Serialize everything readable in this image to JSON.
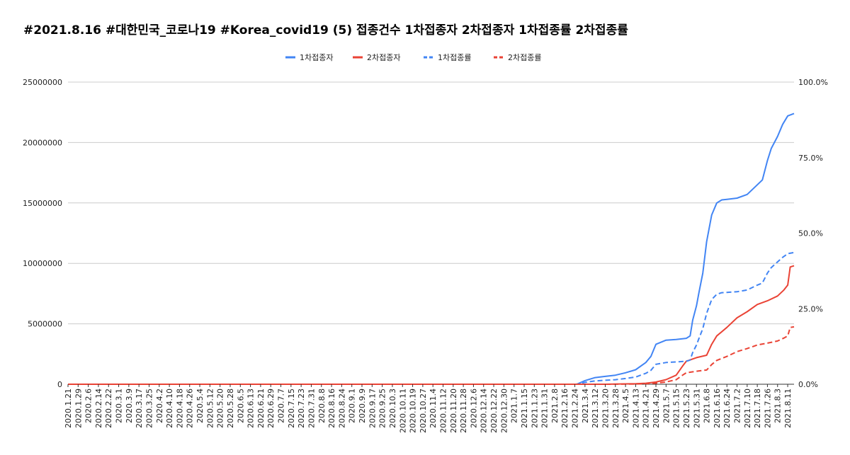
{
  "chart_data": {
    "type": "line",
    "title": "#2021.8.16 #대한민국_코로나19 #Korea_covid19 (5) 접종건수 1차접종자 2차접종자 1차접종률 2차접종률",
    "xlabel": "",
    "ylabel": "",
    "ylim": [
      0,
      25000000
    ],
    "y2lim": [
      0,
      100
    ],
    "grid": true,
    "legend_position": "top",
    "y_ticks": [
      "0",
      "5000000",
      "10000000",
      "15000000",
      "20000000",
      "25000000"
    ],
    "y2_ticks": [
      "0.0%",
      "25.0%",
      "50.0%",
      "75.0%",
      "100.0%"
    ],
    "x_ticks": [
      "2020.1.21",
      "2020.1.29",
      "2020.2.6",
      "2020.2.14",
      "2020.2.22",
      "2020.3.1",
      "2020.3.9",
      "2020.3.17",
      "2020.3.25",
      "2020.4.2",
      "2020.4.10",
      "2020.4.18",
      "2020.4.26",
      "2020.5.4",
      "2020.5.12",
      "2020.5.20",
      "2020.5.28",
      "2020.6.5",
      "2020.6.13",
      "2020.6.21",
      "2020.6.29",
      "2020.7.7",
      "2020.7.15",
      "2020.7.23",
      "2020.7.31",
      "2020.8.8",
      "2020.8.16",
      "2020.8.24",
      "2020.9.1",
      "2020.9.9",
      "2020.9.17",
      "2020.9.25",
      "2020.10.3",
      "2020.10.11",
      "2020.10.19",
      "2020.10.27",
      "2020.11.4",
      "2020.11.12",
      "2020.11.20",
      "2020.11.28",
      "2020.12.6",
      "2020.12.14",
      "2020.12.22",
      "2020.12.30",
      "2021.1.7",
      "2021.1.15",
      "2021.1.23",
      "2021.1.31",
      "2021.2.8",
      "2021.2.16",
      "2021.2.24",
      "2021.3.4",
      "2021.3.12",
      "2021.3.20",
      "2021.3.28",
      "2021.4.5",
      "2021.4.13",
      "2021.4.21",
      "2021.4.29",
      "2021.5.7",
      "2021.5.15",
      "2021.5.23",
      "2021.5.31",
      "2021.6.8",
      "2021.6.16",
      "2021.6.24",
      "2021.7.2",
      "2021.7.10",
      "2021.7.18",
      "2021.7.26",
      "2021.8.3",
      "2021.8.11"
    ],
    "series": [
      {
        "name": "1차접종자",
        "axis": "left",
        "style": "solid",
        "color": "#4285f4",
        "points": [
          [
            "2020.1.21",
            0
          ],
          [
            "2021.2.25",
            0
          ],
          [
            "2021.2.26",
            20000
          ],
          [
            "2021.3.4",
            300000
          ],
          [
            "2021.3.12",
            550000
          ],
          [
            "2021.3.20",
            650000
          ],
          [
            "2021.3.28",
            750000
          ],
          [
            "2021.4.5",
            950000
          ],
          [
            "2021.4.13",
            1200000
          ],
          [
            "2021.4.21",
            1800000
          ],
          [
            "2021.4.25",
            2300000
          ],
          [
            "2021.4.29",
            3300000
          ],
          [
            "2021.5.7",
            3650000
          ],
          [
            "2021.5.15",
            3700000
          ],
          [
            "2021.5.23",
            3800000
          ],
          [
            "2021.5.26",
            4000000
          ],
          [
            "2021.5.28",
            5300000
          ],
          [
            "2021.5.31",
            6500000
          ],
          [
            "2021.6.2",
            7600000
          ],
          [
            "2021.6.5",
            9200000
          ],
          [
            "2021.6.8",
            11800000
          ],
          [
            "2021.6.12",
            14000000
          ],
          [
            "2021.6.16",
            15000000
          ],
          [
            "2021.6.20",
            15250000
          ],
          [
            "2021.6.24",
            15300000
          ],
          [
            "2021.7.2",
            15400000
          ],
          [
            "2021.7.10",
            15700000
          ],
          [
            "2021.7.18",
            16500000
          ],
          [
            "2021.7.22",
            16900000
          ],
          [
            "2021.7.26",
            18500000
          ],
          [
            "2021.7.29",
            19500000
          ],
          [
            "2021.8.3",
            20500000
          ],
          [
            "2021.8.7",
            21500000
          ],
          [
            "2021.8.11",
            22200000
          ],
          [
            "2021.8.16",
            22400000
          ]
        ]
      },
      {
        "name": "2차접종자",
        "axis": "left",
        "style": "solid",
        "color": "#ea4335",
        "points": [
          [
            "2020.1.21",
            0
          ],
          [
            "2021.3.20",
            0
          ],
          [
            "2021.4.13",
            40000
          ],
          [
            "2021.4.21",
            80000
          ],
          [
            "2021.4.29",
            180000
          ],
          [
            "2021.5.7",
            380000
          ],
          [
            "2021.5.15",
            750000
          ],
          [
            "2021.5.20",
            1500000
          ],
          [
            "2021.5.23",
            1900000
          ],
          [
            "2021.5.31",
            2200000
          ],
          [
            "2021.6.8",
            2400000
          ],
          [
            "2021.6.12",
            3300000
          ],
          [
            "2021.6.16",
            4000000
          ],
          [
            "2021.6.24",
            4700000
          ],
          [
            "2021.7.2",
            5500000
          ],
          [
            "2021.7.10",
            6000000
          ],
          [
            "2021.7.18",
            6600000
          ],
          [
            "2021.7.26",
            6900000
          ],
          [
            "2021.8.3",
            7300000
          ],
          [
            "2021.8.8",
            7800000
          ],
          [
            "2021.8.11",
            8200000
          ],
          [
            "2021.8.13",
            9700000
          ],
          [
            "2021.8.16",
            9800000
          ]
        ]
      },
      {
        "name": "1차접종률",
        "axis": "right",
        "style": "dashed",
        "color": "#4285f4",
        "points": [
          [
            "2020.1.21",
            0
          ],
          [
            "2021.2.25",
            0
          ],
          [
            "2021.2.26",
            0.05
          ],
          [
            "2021.3.4",
            0.6
          ],
          [
            "2021.3.12",
            1.1
          ],
          [
            "2021.3.20",
            1.3
          ],
          [
            "2021.3.28",
            1.5
          ],
          [
            "2021.4.5",
            1.9
          ],
          [
            "2021.4.13",
            2.4
          ],
          [
            "2021.4.21",
            3.6
          ],
          [
            "2021.4.25",
            4.6
          ],
          [
            "2021.4.29",
            6.6
          ],
          [
            "2021.5.7",
            7.2
          ],
          [
            "2021.5.15",
            7.4
          ],
          [
            "2021.5.23",
            7.6
          ],
          [
            "2021.5.26",
            8.0
          ],
          [
            "2021.5.28",
            10.5
          ],
          [
            "2021.5.31",
            13.0
          ],
          [
            "2021.6.2",
            15.2
          ],
          [
            "2021.6.5",
            18.4
          ],
          [
            "2021.6.8",
            23.5
          ],
          [
            "2021.6.12",
            28.0
          ],
          [
            "2021.6.16",
            29.8
          ],
          [
            "2021.6.20",
            30.3
          ],
          [
            "2021.6.24",
            30.4
          ],
          [
            "2021.7.2",
            30.6
          ],
          [
            "2021.7.10",
            31.2
          ],
          [
            "2021.7.18",
            32.8
          ],
          [
            "2021.7.22",
            33.5
          ],
          [
            "2021.7.26",
            36.8
          ],
          [
            "2021.7.29",
            38.6
          ],
          [
            "2021.8.3",
            40.5
          ],
          [
            "2021.8.7",
            42.0
          ],
          [
            "2021.8.11",
            43.2
          ],
          [
            "2021.8.16",
            43.6
          ]
        ]
      },
      {
        "name": "2차접종률",
        "axis": "right",
        "style": "dashed",
        "color": "#ea4335",
        "points": [
          [
            "2020.1.21",
            0
          ],
          [
            "2021.3.20",
            0
          ],
          [
            "2021.4.13",
            0.08
          ],
          [
            "2021.4.21",
            0.16
          ],
          [
            "2021.4.29",
            0.36
          ],
          [
            "2021.5.7",
            0.75
          ],
          [
            "2021.5.15",
            1.5
          ],
          [
            "2021.5.20",
            3.0
          ],
          [
            "2021.5.23",
            3.8
          ],
          [
            "2021.5.31",
            4.3
          ],
          [
            "2021.6.8",
            4.7
          ],
          [
            "2021.6.12",
            6.5
          ],
          [
            "2021.6.16",
            7.9
          ],
          [
            "2021.6.24",
            9.2
          ],
          [
            "2021.7.2",
            10.8
          ],
          [
            "2021.7.10",
            11.8
          ],
          [
            "2021.7.18",
            13.0
          ],
          [
            "2021.7.26",
            13.6
          ],
          [
            "2021.8.3",
            14.3
          ],
          [
            "2021.8.8",
            15.3
          ],
          [
            "2021.8.11",
            16.0
          ],
          [
            "2021.8.13",
            18.8
          ],
          [
            "2021.8.16",
            19.0
          ]
        ]
      }
    ]
  }
}
